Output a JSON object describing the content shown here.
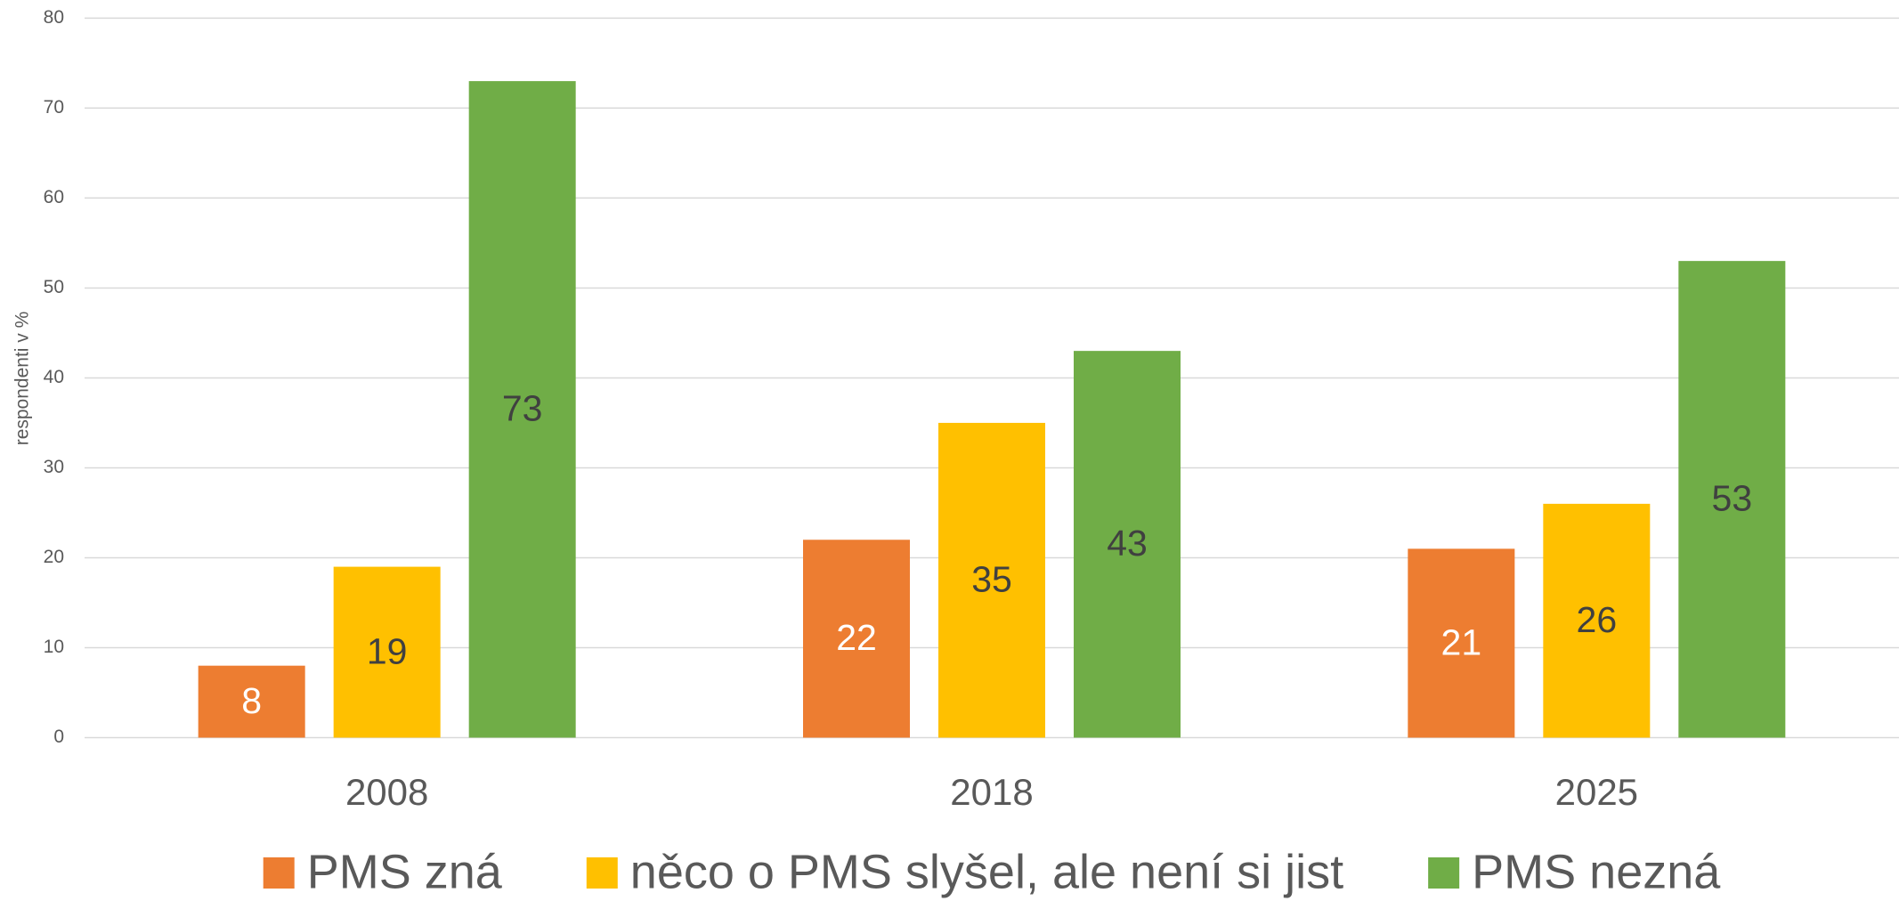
{
  "chart_data": {
    "type": "bar",
    "y_label": "respondenti v %",
    "categories": [
      "2008",
      "2018",
      "2025"
    ],
    "series": [
      {
        "name": "PMS zná",
        "color": "#ED7D31",
        "values": [
          8,
          22,
          21
        ]
      },
      {
        "name": "něco o PMS slyšel, ale není si jist",
        "color": "#FFC000",
        "values": [
          19,
          35,
          26
        ]
      },
      {
        "name": "PMS nezná",
        "color": "#70AD47",
        "values": [
          73,
          43,
          53
        ]
      }
    ],
    "ylim": [
      0,
      80
    ],
    "yticks": [
      0,
      10,
      20,
      30,
      40,
      50,
      60,
      70,
      80
    ],
    "grid": true,
    "legend": "bottom"
  }
}
